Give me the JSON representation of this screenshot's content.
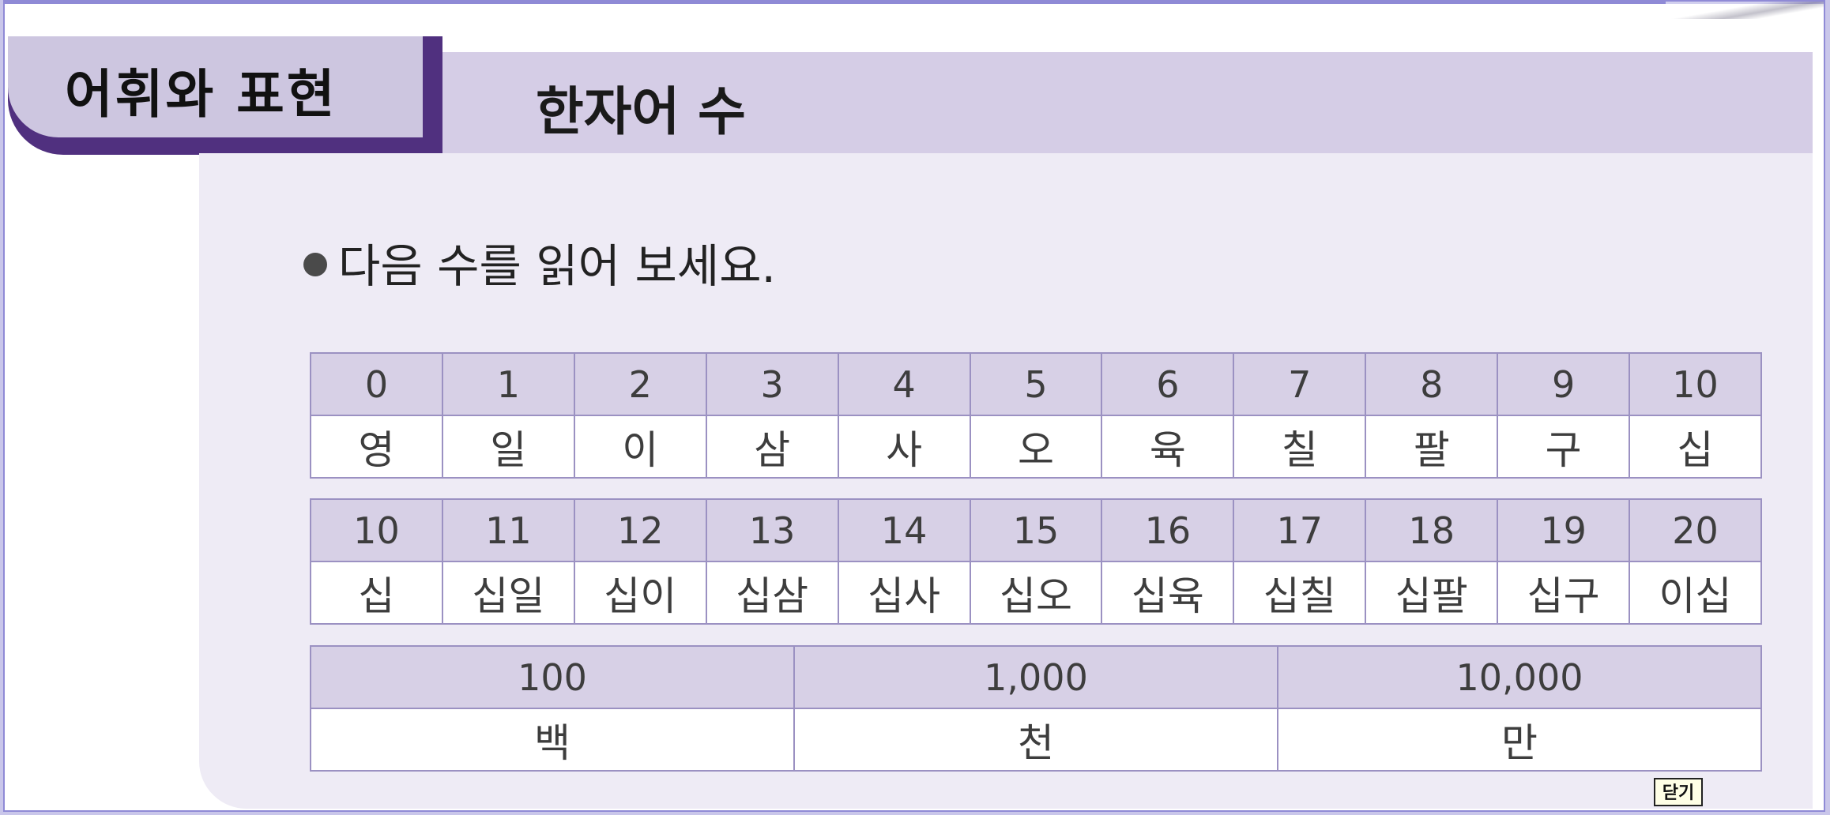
{
  "header": {
    "section_label": "어휘와 표현",
    "title": "한자어 수"
  },
  "instruction": "다음 수를 읽어 보세요.",
  "tables": [
    {
      "numbers": [
        "0",
        "1",
        "2",
        "3",
        "4",
        "5",
        "6",
        "7",
        "8",
        "9",
        "10"
      ],
      "readings": [
        "영",
        "일",
        "이",
        "삼",
        "사",
        "오",
        "육",
        "칠",
        "팔",
        "구",
        "십"
      ]
    },
    {
      "numbers": [
        "10",
        "11",
        "12",
        "13",
        "14",
        "15",
        "16",
        "17",
        "18",
        "19",
        "20"
      ],
      "readings": [
        "십",
        "십일",
        "십이",
        "십삼",
        "십사",
        "십오",
        "십육",
        "십칠",
        "십팔",
        "십구",
        "이십"
      ]
    },
    {
      "numbers": [
        "100",
        "1,000",
        "10,000"
      ],
      "readings": [
        "백",
        "천",
        "만"
      ]
    }
  ],
  "close_button": "닫기",
  "colors": {
    "accent_purple": "#50307f",
    "header_lavender": "#d5cde6",
    "cell_header": "#d7d0e6",
    "panel_bg": "#eeebf5",
    "border": "#9b91c2"
  }
}
